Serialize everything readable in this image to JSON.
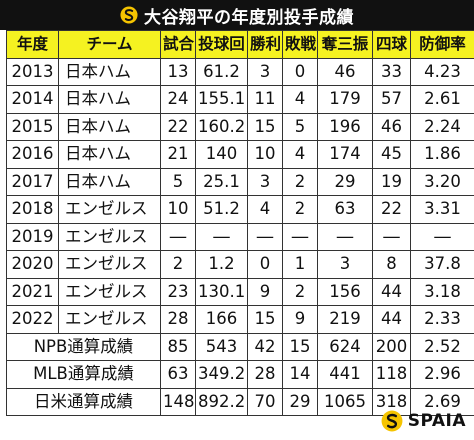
{
  "title": "大谷翔平の年度別投手成績",
  "brand": "SPAIA",
  "colors": {
    "header_bg": "#f5f221",
    "title_bg": "#111111",
    "logo_yellow": "#f5c400"
  },
  "columns": [
    "年度",
    "チーム",
    "試合",
    "投球回",
    "勝利",
    "敗戦",
    "奪三振",
    "四球",
    "防御率"
  ],
  "rows": [
    {
      "year": "2013",
      "team": "日本ハム",
      "games": "13",
      "innings": "61.2",
      "wins": "3",
      "losses": "0",
      "strikeouts": "46",
      "walks": "33",
      "era": "4.23"
    },
    {
      "year": "2014",
      "team": "日本ハム",
      "games": "24",
      "innings": "155.1",
      "wins": "11",
      "losses": "4",
      "strikeouts": "179",
      "walks": "57",
      "era": "2.61"
    },
    {
      "year": "2015",
      "team": "日本ハム",
      "games": "22",
      "innings": "160.2",
      "wins": "15",
      "losses": "5",
      "strikeouts": "196",
      "walks": "46",
      "era": "2.24"
    },
    {
      "year": "2016",
      "team": "日本ハム",
      "games": "21",
      "innings": "140",
      "wins": "10",
      "losses": "4",
      "strikeouts": "174",
      "walks": "45",
      "era": "1.86"
    },
    {
      "year": "2017",
      "team": "日本ハム",
      "games": "5",
      "innings": "25.1",
      "wins": "3",
      "losses": "2",
      "strikeouts": "29",
      "walks": "19",
      "era": "3.20"
    },
    {
      "year": "2018",
      "team": "エンゼルス",
      "games": "10",
      "innings": "51.2",
      "wins": "4",
      "losses": "2",
      "strikeouts": "63",
      "walks": "22",
      "era": "3.31"
    },
    {
      "year": "2019",
      "team": "エンゼルス",
      "games": "―",
      "innings": "―",
      "wins": "―",
      "losses": "―",
      "strikeouts": "―",
      "walks": "―",
      "era": "―"
    },
    {
      "year": "2020",
      "team": "エンゼルス",
      "games": "2",
      "innings": "1.2",
      "wins": "0",
      "losses": "1",
      "strikeouts": "3",
      "walks": "8",
      "era": "37.8"
    },
    {
      "year": "2021",
      "team": "エンゼルス",
      "games": "23",
      "innings": "130.1",
      "wins": "9",
      "losses": "2",
      "strikeouts": "156",
      "walks": "44",
      "era": "3.18"
    },
    {
      "year": "2022",
      "team": "エンゼルス",
      "games": "28",
      "innings": "166",
      "wins": "15",
      "losses": "9",
      "strikeouts": "219",
      "walks": "44",
      "era": "2.33"
    }
  ],
  "totals": [
    {
      "label": "NPB通算成績",
      "games": "85",
      "innings": "543",
      "wins": "42",
      "losses": "15",
      "strikeouts": "624",
      "walks": "200",
      "era": "2.52"
    },
    {
      "label": "MLB通算成績",
      "games": "63",
      "innings": "349.2",
      "wins": "28",
      "losses": "14",
      "strikeouts": "441",
      "walks": "118",
      "era": "2.96"
    },
    {
      "label": "日米通算成績",
      "games": "148",
      "innings": "892.2",
      "wins": "70",
      "losses": "29",
      "strikeouts": "1065",
      "walks": "318",
      "era": "2.69"
    }
  ]
}
